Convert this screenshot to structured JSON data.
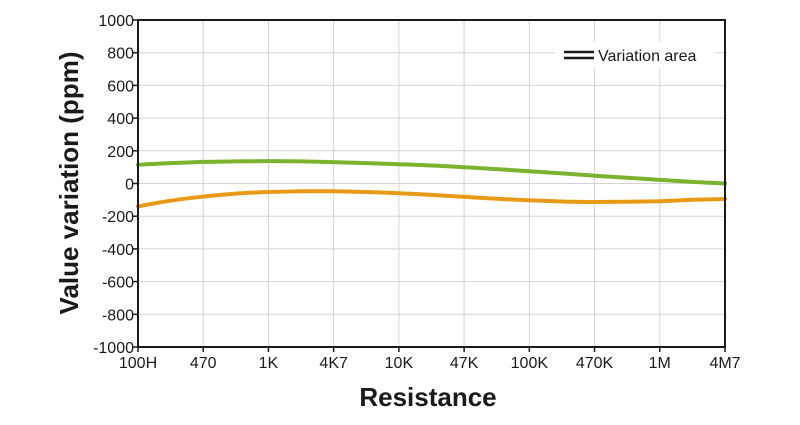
{
  "chart_data": {
    "type": "line",
    "xlabel": "Resistance",
    "ylabel": "Value variation (ppm)",
    "categories": [
      "100H",
      "470",
      "1K",
      "4K7",
      "10K",
      "47K",
      "100K",
      "470K",
      "1M",
      "4M7"
    ],
    "yticks": [
      "1000",
      "800",
      "600",
      "400",
      "200",
      "0",
      "-200",
      "-400",
      "-600",
      "-800",
      "-1000"
    ],
    "ylim": [
      -1000,
      1000
    ],
    "grid": true,
    "legend": {
      "position": "top-right",
      "label": "Variation area"
    },
    "series": [
      {
        "color": "#7cb32e",
        "x": [
          0,
          0.5,
          1,
          1.5,
          2,
          2.5,
          3,
          3.5,
          4,
          4.5,
          5,
          5.5,
          6,
          6.5,
          7,
          7.5,
          8,
          8.5,
          9
        ],
        "values": [
          115,
          125,
          132,
          135,
          137,
          135,
          131,
          125,
          118,
          110,
          100,
          88,
          75,
          62,
          48,
          35,
          22,
          10,
          0
        ]
      },
      {
        "color": "#e89a17",
        "x": [
          0,
          0.5,
          1,
          1.5,
          2,
          2.5,
          3,
          3.5,
          4,
          4.5,
          5,
          5.5,
          6,
          6.5,
          7,
          7.5,
          8,
          8.5,
          9
        ],
        "values": [
          -140,
          -105,
          -80,
          -62,
          -52,
          -48,
          -48,
          -52,
          -60,
          -70,
          -82,
          -93,
          -103,
          -110,
          -113,
          -112,
          -108,
          -100,
          -95
        ]
      }
    ]
  }
}
